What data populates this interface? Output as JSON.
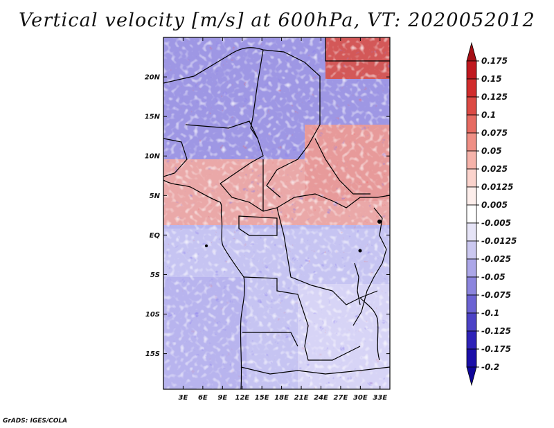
{
  "title": "Vertical velocity [m/s] at 600hPa, VT: 2020052012",
  "footer": "GrADS: IGES/COLA",
  "map": {
    "lat_labels": [
      "20N",
      "15N",
      "10N",
      "5N",
      "EQ",
      "5S",
      "10S",
      "15S"
    ],
    "lon_labels": [
      "3E",
      "6E",
      "9E",
      "12E",
      "15E",
      "18E",
      "21E",
      "24E",
      "27E",
      "30E",
      "33E"
    ],
    "lat_values": [
      20,
      15,
      10,
      5,
      0,
      -5,
      -10,
      -15
    ],
    "lon_values": [
      3,
      6,
      9,
      12,
      15,
      18,
      21,
      24,
      27,
      30,
      33
    ],
    "lon_range": [
      0,
      34.5
    ],
    "lat_range": [
      -19.5,
      25
    ]
  },
  "colorbar": {
    "labels": [
      "0.175",
      "0.15",
      "0.125",
      "0.1",
      "0.075",
      "0.05",
      "0.025",
      "0.0125",
      "0.005",
      "-0.005",
      "-0.0125",
      "-0.025",
      "-0.05",
      "-0.075",
      "-0.1",
      "-0.125",
      "-0.175",
      "-0.2"
    ],
    "colors": [
      "#a50f15",
      "#c0181f",
      "#d12c2c",
      "#dc4a44",
      "#e66b62",
      "#ef8f85",
      "#f6b3aa",
      "#fbd3cc",
      "#fdeeeb",
      "#ffffff",
      "#e6e4f7",
      "#cbc8f0",
      "#aca7e8",
      "#8c85de",
      "#6c63d3",
      "#4c42c6",
      "#2e22b8",
      "#1a0ea8",
      "#0f0599"
    ]
  }
}
